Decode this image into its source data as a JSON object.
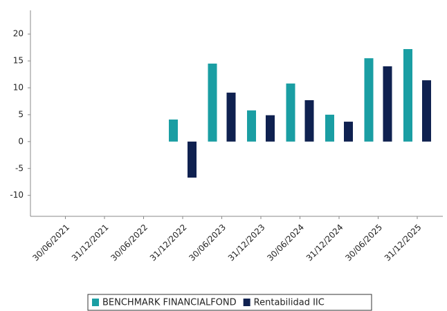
{
  "chart_data": {
    "type": "bar",
    "categories": [
      "30/06/2021",
      "31/12/2021",
      "30/06/2022",
      "31/12/2022",
      "30/06/2023",
      "31/12/2023",
      "30/06/2024",
      "31/12/2024",
      "30/06/2025",
      "31/12/2025"
    ],
    "series": [
      {
        "name": "BENCHMARK FINANCIALFOND",
        "color": "#1a9ea3",
        "values": [
          null,
          null,
          null,
          4.1,
          14.5,
          5.8,
          10.8,
          5.0,
          15.5,
          17.2
        ]
      },
      {
        "name": "Rentabilidad IIC",
        "color": "#0f2150",
        "values": [
          null,
          null,
          null,
          -6.7,
          9.1,
          4.9,
          7.7,
          3.7,
          14.0,
          11.4
        ]
      }
    ],
    "ylim": [
      -13.9,
      24.4
    ],
    "yticks": [
      -10,
      -5,
      0,
      5,
      10,
      15,
      20
    ],
    "grid": false,
    "legend": "bottom"
  }
}
